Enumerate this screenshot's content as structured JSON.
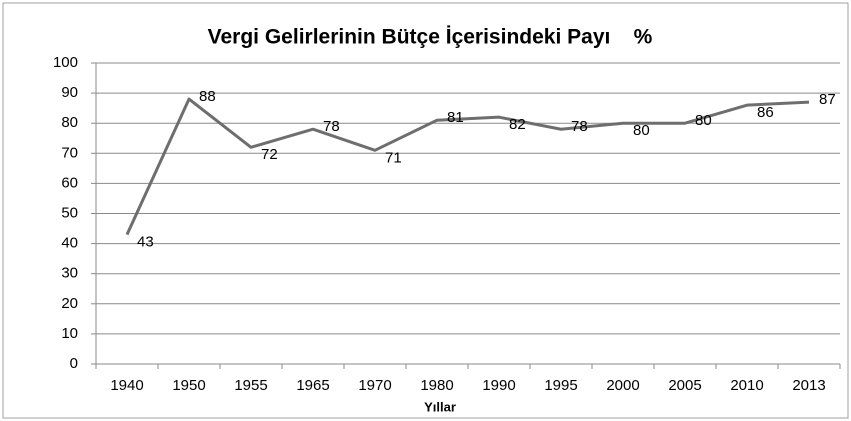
{
  "chart_data": {
    "type": "line",
    "title": "Vergi Gelirlerinin Bütçe İçerisindeki Payı    %",
    "x_label": "Yıllar",
    "categories": [
      "1940",
      "1950",
      "1955",
      "1965",
      "1970",
      "1980",
      "1990",
      "1995",
      "2000",
      "2005",
      "2010",
      "2013"
    ],
    "series": [
      {
        "name": "Vergi Gelirlerinin Bütçe İçerisindeki Payı",
        "color": "#6e6e6e",
        "values": [
          43,
          88,
          72,
          78,
          71,
          81,
          82,
          78,
          80,
          80,
          86,
          87
        ]
      }
    ],
    "ylim": [
      0,
      100
    ],
    "yticks": [
      0,
      10,
      20,
      30,
      40,
      50,
      60,
      70,
      80,
      90,
      100
    ],
    "grid": true,
    "data_labels": true
  }
}
